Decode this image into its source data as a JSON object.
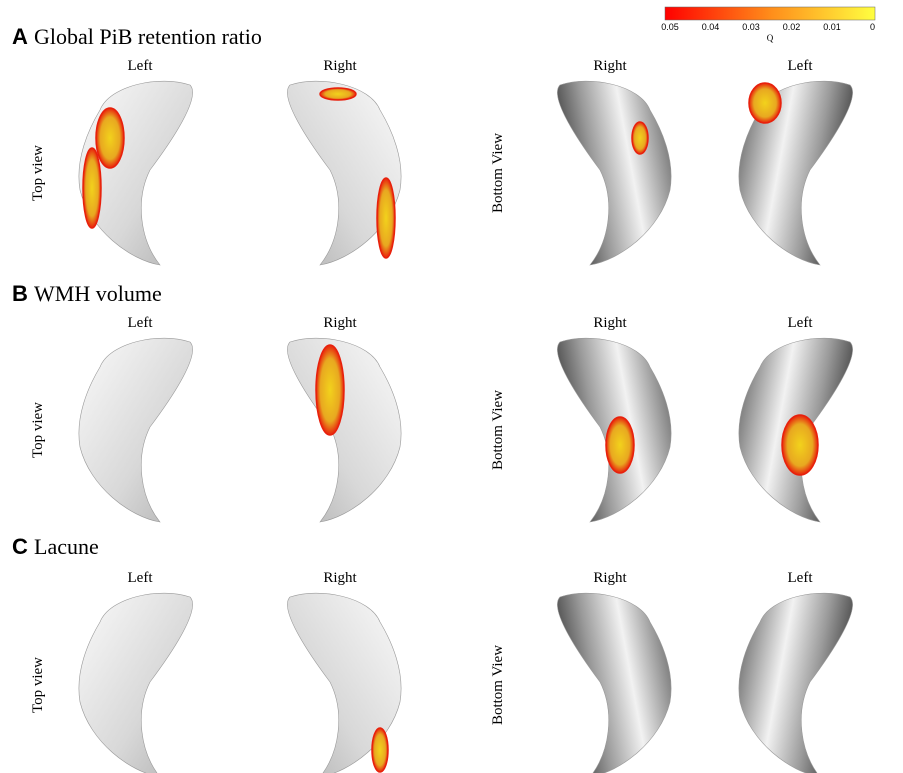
{
  "colorbar": {
    "ticks": [
      "0.05",
      "0.04",
      "0.03",
      "0.02",
      "0.01",
      "0"
    ],
    "label": "Q"
  },
  "panels": [
    {
      "letter": "A",
      "title": "Global PiB retention ratio",
      "columns": [
        "Left",
        "Right",
        "Right",
        "Left"
      ],
      "rows": [
        "Top view",
        "Bottom View"
      ]
    },
    {
      "letter": "B",
      "title": "WMH volume",
      "columns": [
        "Left",
        "Right",
        "Right",
        "Left"
      ],
      "rows": [
        "Top view",
        "Bottom View"
      ]
    },
    {
      "letter": "C",
      "title": "Lacune",
      "columns": [
        "Left",
        "Right",
        "Right",
        "Left"
      ],
      "rows": [
        "Top view",
        "Bottom View"
      ]
    }
  ]
}
